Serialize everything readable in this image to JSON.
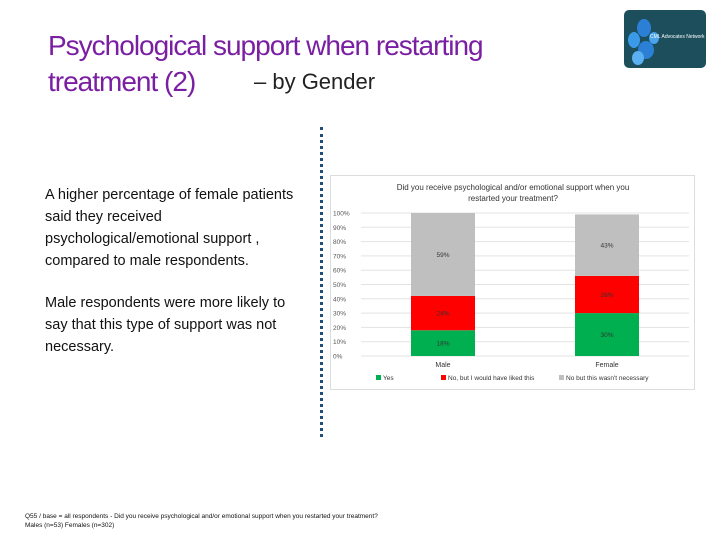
{
  "title": {
    "main": "Psychological support when restarting treatment (2)",
    "suffix": " – by Gender"
  },
  "logo": {
    "text": "CML Advocates Network"
  },
  "body": {
    "p1": "A higher percentage of female patients said they received psychological/emotional support , compared to male respondents.",
    "p2": "Male respondents were more likely to say that this type of support was not necessary."
  },
  "footnote": {
    "line1": "Q55 / base = all respondents - Did you receive psychological and/or emotional support when you restarted your treatment?",
    "line2": "Males (n=53) Females (n=302)"
  },
  "chart_data": {
    "type": "bar",
    "stacked": true,
    "title": "Did you receive psychological and/or emotional support when you restarted your treatment?",
    "title_lines": [
      "Did you receive psychological and/or emotional support when you",
      "restarted your treatment?"
    ],
    "categories": [
      "Male",
      "Female"
    ],
    "ylim": [
      0,
      100
    ],
    "yticks": [
      "0%",
      "10%",
      "20%",
      "30%",
      "40%",
      "50%",
      "60%",
      "70%",
      "80%",
      "90%",
      "100%"
    ],
    "grid": true,
    "legend": "bottom",
    "series": [
      {
        "name": "Yes",
        "values": [
          18,
          30
        ],
        "color": "#00b050"
      },
      {
        "name": "No, but I would have liked this",
        "values": [
          24,
          26
        ],
        "color": "#ff0000"
      },
      {
        "name": "No but this wasn't necessary",
        "values": [
          59,
          43
        ],
        "color": "#bfbfbf"
      }
    ]
  }
}
